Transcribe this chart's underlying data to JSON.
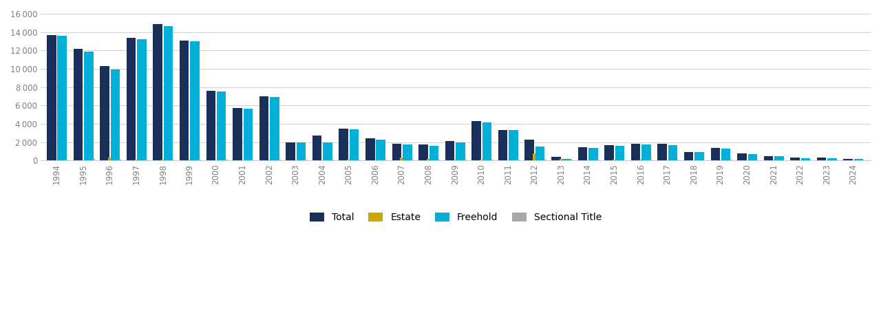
{
  "years": [
    1994,
    1995,
    1996,
    1997,
    1998,
    1999,
    2000,
    2001,
    2002,
    2003,
    2004,
    2005,
    2006,
    2007,
    2008,
    2009,
    2010,
    2011,
    2012,
    2013,
    2014,
    2015,
    2016,
    2017,
    2018,
    2019,
    2020,
    2021,
    2022,
    2023,
    2024
  ],
  "total": [
    13700,
    12200,
    10300,
    13400,
    14900,
    13100,
    7600,
    5700,
    7000,
    2000,
    2700,
    3500,
    2400,
    1800,
    1750,
    2100,
    4300,
    3350,
    2300,
    400,
    1450,
    1650,
    1850,
    1800,
    950,
    1350,
    750,
    500,
    300,
    300,
    200
  ],
  "estate": [
    0,
    0,
    350,
    100,
    100,
    100,
    0,
    0,
    0,
    0,
    0,
    100,
    0,
    300,
    200,
    100,
    100,
    0,
    800,
    200,
    0,
    100,
    100,
    0,
    0,
    0,
    0,
    0,
    0,
    0,
    0
  ],
  "freehold": [
    13600,
    11900,
    9950,
    13200,
    14650,
    13000,
    7550,
    5650,
    6950,
    1950,
    1950,
    3400,
    2300,
    1750,
    1600,
    2000,
    4150,
    3300,
    1500,
    150,
    1400,
    1600,
    1750,
    1700,
    900,
    1300,
    700,
    450,
    250,
    250,
    150
  ],
  "sectional": [
    100,
    200,
    100,
    100,
    100,
    100,
    100,
    100,
    100,
    100,
    100,
    100,
    100,
    100,
    100,
    100,
    100,
    100,
    100,
    100,
    100,
    50,
    100,
    100,
    50,
    100,
    50,
    50,
    50,
    50,
    50
  ],
  "color_total": "#1a2f5a",
  "color_estate": "#c9a800",
  "color_freehold": "#00b0d8",
  "color_sectional": "#a8a8a8",
  "ylim": [
    0,
    16000
  ],
  "yticks": [
    0,
    2000,
    4000,
    6000,
    8000,
    10000,
    12000,
    14000,
    16000
  ],
  "background_color": "#ffffff",
  "grid_color": "#d0d0d0"
}
